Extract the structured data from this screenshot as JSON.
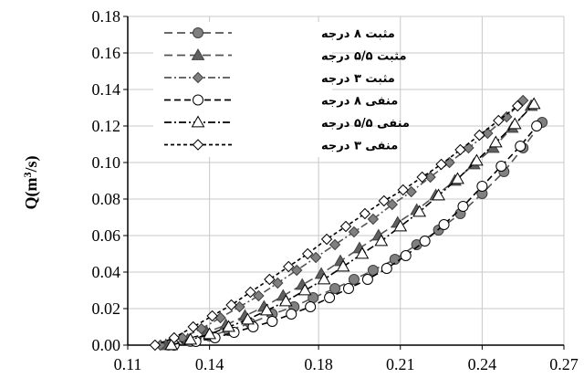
{
  "chart_data": {
    "type": "scatter",
    "title": "",
    "xlabel": "",
    "ylabel": "Q(m³/s)",
    "ylabel_parts": {
      "main": "Q(m",
      "sup": "3",
      "tail": "/s)"
    },
    "xlim": [
      0.11,
      0.27
    ],
    "ylim": [
      0.0,
      0.18
    ],
    "xticks": [
      "0.11",
      "0.14",
      "0.18",
      "0.21",
      "0.24",
      "0.27"
    ],
    "xtick_values": [
      0.11,
      0.14,
      0.18,
      0.21,
      0.24,
      0.27
    ],
    "yticks": [
      "0.00",
      "0.02",
      "0.04",
      "0.06",
      "0.08",
      "0.10",
      "0.12",
      "0.14",
      "0.16",
      "0.18"
    ],
    "ytick_values": [
      0.0,
      0.02,
      0.04,
      0.06,
      0.08,
      0.1,
      0.12,
      0.14,
      0.16,
      0.18
    ],
    "grid": true,
    "legend_position": "top-center",
    "series": [
      {
        "name": "مثبت ۸ درجه",
        "marker": "circle",
        "filled": true,
        "line_style": "long-dash",
        "color": "#808080",
        "x": [
          0.125,
          0.133,
          0.14,
          0.147,
          0.155,
          0.163,
          0.171,
          0.178,
          0.186,
          0.193,
          0.2,
          0.208,
          0.216,
          0.224,
          0.232,
          0.24,
          0.248,
          0.255,
          0.262
        ],
        "y": [
          0.0,
          0.002,
          0.005,
          0.008,
          0.012,
          0.017,
          0.021,
          0.026,
          0.031,
          0.036,
          0.041,
          0.047,
          0.055,
          0.063,
          0.072,
          0.083,
          0.095,
          0.108,
          0.122
        ]
      },
      {
        "name": "مثبت ۵/۵ درجه",
        "marker": "triangle",
        "filled": true,
        "line_style": "long-dash",
        "color": "#606060",
        "x": [
          0.124,
          0.132,
          0.139,
          0.146,
          0.153,
          0.16,
          0.167,
          0.174,
          0.181,
          0.188,
          0.195,
          0.202,
          0.209,
          0.216,
          0.223,
          0.23,
          0.237,
          0.244,
          0.251,
          0.258
        ],
        "y": [
          0.0,
          0.003,
          0.007,
          0.011,
          0.016,
          0.021,
          0.027,
          0.033,
          0.039,
          0.046,
          0.053,
          0.06,
          0.067,
          0.074,
          0.082,
          0.09,
          0.099,
          0.108,
          0.119,
          0.131
        ]
      },
      {
        "name": "مثبت ۳ درجه",
        "marker": "diamond",
        "filled": true,
        "line_style": "dash-dot",
        "color": "#808080",
        "x": [
          0.122,
          0.13,
          0.137,
          0.144,
          0.151,
          0.158,
          0.165,
          0.172,
          0.179,
          0.186,
          0.193,
          0.2,
          0.207,
          0.214,
          0.221,
          0.228,
          0.235,
          0.242,
          0.249,
          0.255
        ],
        "y": [
          0.0,
          0.004,
          0.009,
          0.015,
          0.021,
          0.027,
          0.034,
          0.041,
          0.048,
          0.055,
          0.062,
          0.069,
          0.077,
          0.084,
          0.092,
          0.1,
          0.108,
          0.116,
          0.125,
          0.134
        ]
      },
      {
        "name": "منفی ۸ درجه",
        "marker": "circle",
        "filled": false,
        "line_style": "dash",
        "color": "#000000",
        "x": [
          0.127,
          0.135,
          0.142,
          0.149,
          0.156,
          0.163,
          0.17,
          0.177,
          0.184,
          0.191,
          0.198,
          0.205,
          0.212,
          0.219,
          0.226,
          0.233,
          0.24,
          0.247,
          0.254,
          0.26
        ],
        "y": [
          0.0,
          0.002,
          0.004,
          0.007,
          0.01,
          0.013,
          0.017,
          0.021,
          0.026,
          0.031,
          0.036,
          0.042,
          0.049,
          0.057,
          0.066,
          0.076,
          0.087,
          0.098,
          0.109,
          0.12
        ]
      },
      {
        "name": "منفی ۵/۵ درجه",
        "marker": "triangle",
        "filled": false,
        "line_style": "dash-dot",
        "color": "#000000",
        "x": [
          0.126,
          0.133,
          0.14,
          0.147,
          0.154,
          0.161,
          0.168,
          0.175,
          0.182,
          0.189,
          0.196,
          0.203,
          0.21,
          0.217,
          0.224,
          0.231,
          0.238,
          0.245,
          0.252,
          0.259
        ],
        "y": [
          0.0,
          0.003,
          0.006,
          0.01,
          0.014,
          0.019,
          0.024,
          0.03,
          0.036,
          0.043,
          0.05,
          0.057,
          0.065,
          0.073,
          0.082,
          0.091,
          0.101,
          0.111,
          0.121,
          0.132
        ]
      },
      {
        "name": "منفی ۳ درجه",
        "marker": "diamond",
        "filled": false,
        "line_style": "short-dash",
        "color": "#000000",
        "x": [
          0.12,
          0.127,
          0.134,
          0.141,
          0.148,
          0.155,
          0.162,
          0.169,
          0.176,
          0.183,
          0.19,
          0.197,
          0.204,
          0.211,
          0.218,
          0.225,
          0.232,
          0.239,
          0.246,
          0.253
        ],
        "y": [
          0.0,
          0.004,
          0.01,
          0.016,
          0.022,
          0.029,
          0.036,
          0.043,
          0.05,
          0.058,
          0.065,
          0.072,
          0.079,
          0.085,
          0.092,
          0.099,
          0.107,
          0.115,
          0.123,
          0.131
        ]
      }
    ]
  }
}
